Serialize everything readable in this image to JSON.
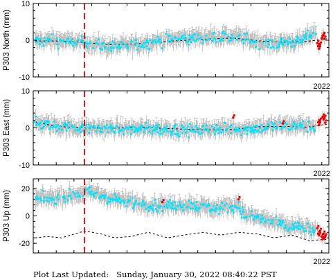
{
  "footer": {
    "label": "Plot Last Updated:",
    "value": "Sunday, January 30, 2022 08:40:22 PST"
  },
  "colors": {
    "error_bar": "#bbbbbb",
    "observation": "#00e5ff",
    "recent": "#ee0000",
    "model": "#000000",
    "event_line": "#dd0000"
  },
  "chart_data": [
    {
      "type": "scatter",
      "ylabel": "P303 North (mm)",
      "ylim": [
        -10,
        10
      ],
      "yticks": [
        "10",
        "0",
        "-10"
      ],
      "x_range": [
        2005.7,
        2022.4
      ],
      "xtick_label": "2022",
      "event_line_x": 2008.6,
      "series": [
        {
          "kind": "observations",
          "color": "cyan",
          "trend": [
            [
              2005.8,
              -0.3
            ],
            [
              2007,
              -0.2
            ],
            [
              2008.5,
              -0.7
            ],
            [
              2010,
              -1.9
            ],
            [
              2011.5,
              -1.3
            ],
            [
              2013,
              -0.2
            ],
            [
              2015,
              0.8
            ],
            [
              2017,
              0.9
            ],
            [
              2019,
              -1.0
            ],
            [
              2020.8,
              -0.4
            ],
            [
              2021.4,
              1.5
            ],
            [
              2022.1,
              2.8
            ]
          ]
        },
        {
          "kind": "recent",
          "color": "red",
          "points": [
            [
              2021.75,
              -0.8
            ],
            [
              2021.8,
              -1.6
            ],
            [
              2021.85,
              -2.3
            ],
            [
              2021.9,
              -1.2
            ],
            [
              2022.0,
              0.6
            ],
            [
              2022.05,
              1.2
            ],
            [
              2022.1,
              1.4
            ],
            [
              2022.15,
              0.4
            ]
          ]
        },
        {
          "kind": "model",
          "style": "dashed",
          "points": [
            [
              2005.8,
              -0.2
            ],
            [
              2007,
              -0.2
            ],
            [
              2008.6,
              -0.6
            ],
            [
              2010,
              -1.2
            ],
            [
              2011.5,
              -1.0
            ],
            [
              2013,
              -0.4
            ],
            [
              2015,
              0.2
            ],
            [
              2017,
              0.6
            ],
            [
              2018.5,
              -0.2
            ],
            [
              2020,
              -0.6
            ],
            [
              2021.2,
              -0.3
            ],
            [
              2022.3,
              0.4
            ]
          ]
        }
      ]
    },
    {
      "type": "scatter",
      "ylabel": "P303 East (mm)",
      "ylim": [
        -10,
        10
      ],
      "yticks": [
        "10",
        "0",
        "-10"
      ],
      "x_range": [
        2005.7,
        2022.4
      ],
      "xtick_label": "2022",
      "event_line_x": 2008.6,
      "series": [
        {
          "kind": "observations",
          "color": "cyan",
          "trend": [
            [
              2005.8,
              1.2
            ],
            [
              2007,
              0.4
            ],
            [
              2008.5,
              -0.2
            ],
            [
              2010,
              -0.3
            ],
            [
              2011.5,
              -0.4
            ],
            [
              2013,
              -0.3
            ],
            [
              2014.5,
              -0.6
            ],
            [
              2016,
              -0.3
            ],
            [
              2017.5,
              -0.4
            ],
            [
              2019,
              0.3
            ],
            [
              2020.5,
              0.6
            ],
            [
              2021.6,
              0.4
            ],
            [
              2022.2,
              1.6
            ]
          ]
        },
        {
          "kind": "recent",
          "color": "red",
          "points": [
            [
              2017.0,
              2.8
            ],
            [
              2019.8,
              1.2
            ],
            [
              2021.8,
              1.5
            ],
            [
              2021.85,
              0.8
            ],
            [
              2021.9,
              1.9
            ],
            [
              2022.05,
              3.0
            ],
            [
              2022.1,
              2.3
            ],
            [
              2022.15,
              2.7
            ],
            [
              2022.2,
              1.4
            ]
          ]
        },
        {
          "kind": "model",
          "style": "dashed",
          "points": [
            [
              2005.8,
              1.6
            ],
            [
              2007,
              0.4
            ],
            [
              2008.6,
              0.0
            ],
            [
              2010,
              -0.1
            ],
            [
              2012,
              0.1
            ],
            [
              2014,
              -0.3
            ],
            [
              2015.5,
              -0.6
            ],
            [
              2017,
              -0.4
            ],
            [
              2018.5,
              0.3
            ],
            [
              2020,
              0.4
            ],
            [
              2021.2,
              0.2
            ],
            [
              2022.3,
              1.0
            ]
          ]
        }
      ]
    },
    {
      "type": "scatter",
      "ylabel": "P303 Up (mm)",
      "ylim": [
        -27,
        27
      ],
      "yticks": [
        "20",
        "0",
        "-20"
      ],
      "x_range": [
        2005.7,
        2022.4
      ],
      "xtick_label": "2022",
      "event_line_x": 2008.6,
      "series": [
        {
          "kind": "observations",
          "color": "cyan",
          "trend": [
            [
              2005.8,
              12
            ],
            [
              2007,
              13
            ],
            [
              2008,
              15
            ],
            [
              2009,
              17
            ],
            [
              2010,
              13
            ],
            [
              2011.5,
              9
            ],
            [
              2013,
              7
            ],
            [
              2014.5,
              8
            ],
            [
              2016,
              5
            ],
            [
              2017.3,
              8
            ],
            [
              2017.6,
              1
            ],
            [
              2019,
              -4
            ],
            [
              2020,
              -8
            ],
            [
              2021,
              -9
            ],
            [
              2022.2,
              -13
            ]
          ]
        },
        {
          "kind": "recent",
          "color": "red",
          "points": [
            [
              2013.0,
              10
            ],
            [
              2017.3,
              12
            ],
            [
              2021.75,
              -9
            ],
            [
              2021.8,
              -13
            ],
            [
              2021.85,
              -14
            ],
            [
              2021.9,
              -11
            ],
            [
              2022.0,
              -15
            ],
            [
              2022.05,
              -17
            ],
            [
              2022.1,
              -13
            ],
            [
              2022.15,
              -16
            ],
            [
              2022.2,
              -15
            ]
          ]
        },
        {
          "kind": "model",
          "style": "dashed",
          "points": [
            [
              2005.8,
              -16
            ],
            [
              2006.5,
              -15
            ],
            [
              2007.3,
              -16
            ],
            [
              2008.6,
              -11
            ],
            [
              2009.5,
              -13
            ],
            [
              2010.3,
              -16
            ],
            [
              2011.2,
              -15
            ],
            [
              2012.2,
              -12
            ],
            [
              2013.3,
              -16
            ],
            [
              2014.2,
              -14
            ],
            [
              2015.3,
              -12
            ],
            [
              2016.3,
              -14
            ],
            [
              2017.3,
              -12
            ],
            [
              2018.3,
              -13
            ],
            [
              2019.3,
              -16
            ],
            [
              2020.3,
              -14
            ],
            [
              2021.3,
              -18
            ],
            [
              2022.3,
              -17
            ]
          ]
        }
      ]
    }
  ]
}
